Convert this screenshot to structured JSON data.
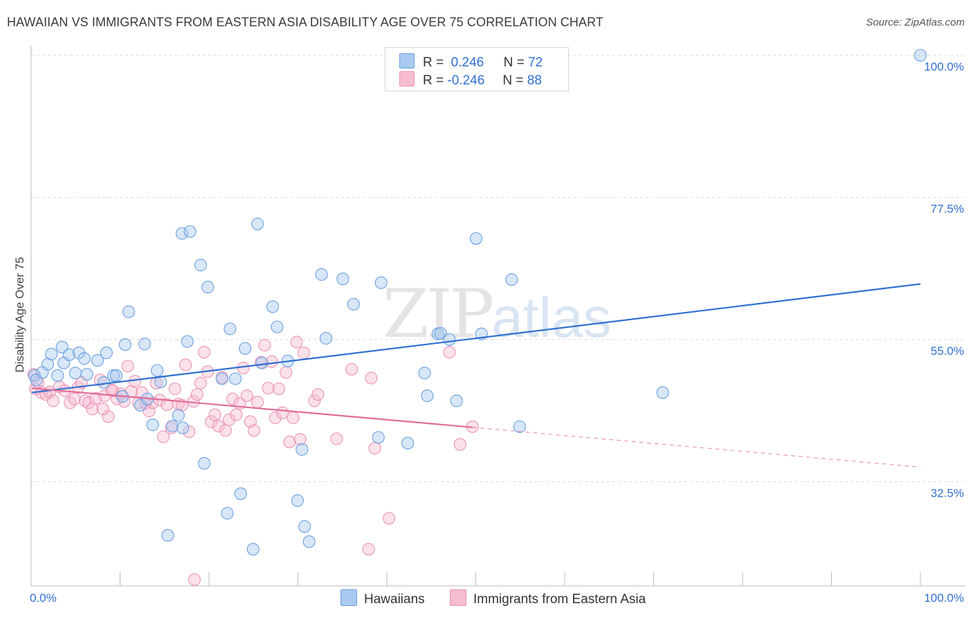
{
  "title": "HAWAIIAN VS IMMIGRANTS FROM EASTERN ASIA DISABILITY AGE OVER 75 CORRELATION CHART",
  "source": "Source: ZipAtlas.com",
  "watermark": {
    "zip": "ZIP",
    "atlas": "atlas"
  },
  "legend": {
    "r_label": "R =",
    "n_label": "N =",
    "series1": {
      "r": "0.246",
      "n": "72"
    },
    "series2": {
      "r": "-0.246",
      "n": "88"
    }
  },
  "colors": {
    "series1_fill": "#a9c9f0",
    "series1_stroke": "#6a9fe0",
    "series1_line": "#2f6fd1",
    "series2_fill": "#f6bcd0",
    "series2_stroke": "#ec93b4",
    "series2_line": "#e06d96",
    "tick_label": "#2f6fd1",
    "grid": "#d9d9d9"
  },
  "chart_data": {
    "type": "scatter",
    "title": "HAWAIIAN VS IMMIGRANTS FROM EASTERN ASIA DISABILITY AGE OVER 75 CORRELATION CHART",
    "xlabel": "",
    "ylabel": "Disability Age Over 75",
    "xlim": [
      0,
      100
    ],
    "ylim": [
      16,
      100
    ],
    "x_tick_labels": [
      "0.0%",
      "100.0%"
    ],
    "y_ticks": [
      32.5,
      55.0,
      77.5,
      100.0
    ],
    "y_tick_labels": [
      "32.5%",
      "55.0%",
      "77.5%",
      "100.0%"
    ],
    "grid": true,
    "legend_position": "bottom",
    "series": [
      {
        "name": "Hawaiians",
        "points": [
          [
            0.3,
            49.3
          ],
          [
            0.5,
            48.6
          ],
          [
            1.2,
            49.8
          ],
          [
            1.8,
            51.1
          ],
          [
            2.2,
            52.7
          ],
          [
            2.9,
            49.3
          ],
          [
            3.4,
            53.8
          ],
          [
            3.6,
            51.3
          ],
          [
            4.2,
            52.6
          ],
          [
            4.9,
            49.7
          ],
          [
            5.3,
            52.9
          ],
          [
            5.9,
            52.0
          ],
          [
            6.2,
            49.5
          ],
          [
            7.4,
            51.7
          ],
          [
            8.1,
            48.2
          ],
          [
            8.4,
            52.9
          ],
          [
            9.2,
            49.3
          ],
          [
            9.5,
            49.3
          ],
          [
            10.2,
            46.0
          ],
          [
            10.5,
            54.2
          ],
          [
            10.9,
            59.4
          ],
          [
            12.2,
            44.6
          ],
          [
            12.7,
            54.3
          ],
          [
            13.0,
            45.6
          ],
          [
            13.6,
            41.5
          ],
          [
            14.1,
            50.1
          ],
          [
            14.5,
            48.3
          ],
          [
            15.3,
            24.0
          ],
          [
            15.8,
            41.3
          ],
          [
            16.5,
            43.0
          ],
          [
            16.9,
            71.8
          ],
          [
            17.5,
            54.7
          ],
          [
            17.8,
            72.1
          ],
          [
            19.0,
            66.8
          ],
          [
            19.4,
            35.4
          ],
          [
            19.8,
            63.3
          ],
          [
            21.4,
            48.8
          ],
          [
            22.0,
            27.5
          ],
          [
            22.3,
            56.7
          ],
          [
            22.9,
            48.8
          ],
          [
            23.5,
            30.6
          ],
          [
            24.0,
            53.6
          ],
          [
            24.9,
            21.8
          ],
          [
            25.4,
            73.3
          ],
          [
            25.9,
            51.3
          ],
          [
            27.1,
            60.2
          ],
          [
            27.6,
            57.0
          ],
          [
            28.8,
            51.6
          ],
          [
            29.9,
            29.5
          ],
          [
            30.4,
            37.6
          ],
          [
            30.7,
            25.4
          ],
          [
            31.2,
            23.0
          ],
          [
            32.6,
            65.3
          ],
          [
            33.1,
            55.2
          ],
          [
            35.0,
            64.6
          ],
          [
            36.2,
            60.6
          ],
          [
            39.0,
            39.5
          ],
          [
            39.3,
            64.0
          ],
          [
            42.3,
            38.6
          ],
          [
            44.2,
            49.7
          ],
          [
            44.5,
            46.1
          ],
          [
            45.7,
            55.9
          ],
          [
            47.8,
            45.3
          ],
          [
            50.0,
            71.0
          ],
          [
            50.6,
            55.9
          ],
          [
            54.0,
            64.5
          ],
          [
            54.9,
            41.2
          ],
          [
            71.0,
            46.6
          ],
          [
            100.0,
            100.0
          ],
          [
            46.0,
            56.0
          ],
          [
            47.0,
            55.0
          ],
          [
            17.0,
            41.0
          ]
        ]
      },
      {
        "name": "Immigrants from Eastern Asia",
        "points": [
          [
            0.2,
            49.5
          ],
          [
            0.4,
            47.2
          ],
          [
            0.7,
            48.2
          ],
          [
            1.1,
            46.6
          ],
          [
            1.6,
            46.3
          ],
          [
            2.0,
            46.7
          ],
          [
            2.4,
            45.3
          ],
          [
            3.1,
            47.5
          ],
          [
            3.7,
            46.9
          ],
          [
            4.3,
            45.0
          ],
          [
            4.8,
            45.6
          ],
          [
            5.2,
            47.4
          ],
          [
            5.6,
            48.2
          ],
          [
            6.0,
            45.3
          ],
          [
            6.4,
            45.0
          ],
          [
            6.8,
            44.0
          ],
          [
            7.2,
            45.7
          ],
          [
            7.7,
            48.6
          ],
          [
            8.2,
            46.1
          ],
          [
            8.6,
            42.8
          ],
          [
            9.1,
            46.9
          ],
          [
            9.6,
            45.6
          ],
          [
            10.0,
            46.4
          ],
          [
            10.4,
            45.2
          ],
          [
            10.8,
            50.8
          ],
          [
            11.2,
            46.8
          ],
          [
            11.6,
            48.4
          ],
          [
            12.0,
            45.0
          ],
          [
            12.4,
            46.6
          ],
          [
            12.8,
            44.9
          ],
          [
            13.2,
            43.7
          ],
          [
            13.6,
            45.0
          ],
          [
            14.0,
            48.1
          ],
          [
            14.4,
            45.4
          ],
          [
            14.8,
            39.6
          ],
          [
            15.2,
            44.7
          ],
          [
            15.7,
            41.0
          ],
          [
            16.1,
            47.2
          ],
          [
            16.5,
            44.8
          ],
          [
            16.9,
            44.6
          ],
          [
            17.3,
            51.0
          ],
          [
            17.7,
            40.4
          ],
          [
            18.2,
            45.2
          ],
          [
            18.6,
            46.3
          ],
          [
            19.0,
            48.1
          ],
          [
            19.4,
            53.0
          ],
          [
            19.8,
            49.9
          ],
          [
            20.2,
            42.0
          ],
          [
            20.6,
            43.1
          ],
          [
            21.0,
            41.3
          ],
          [
            21.4,
            49.0
          ],
          [
            21.8,
            40.6
          ],
          [
            22.2,
            42.3
          ],
          [
            22.6,
            45.6
          ],
          [
            23.0,
            43.1
          ],
          [
            23.4,
            44.9
          ],
          [
            23.8,
            50.5
          ],
          [
            24.2,
            46.1
          ],
          [
            24.6,
            42.0
          ],
          [
            25.0,
            40.6
          ],
          [
            25.4,
            45.1
          ],
          [
            25.8,
            51.4
          ],
          [
            26.2,
            54.1
          ],
          [
            26.6,
            47.3
          ],
          [
            27.0,
            51.5
          ],
          [
            27.4,
            42.6
          ],
          [
            27.8,
            47.2
          ],
          [
            28.2,
            43.4
          ],
          [
            28.6,
            49.8
          ],
          [
            29.0,
            38.8
          ],
          [
            29.4,
            42.6
          ],
          [
            29.8,
            54.6
          ],
          [
            30.2,
            39.2
          ],
          [
            30.6,
            52.9
          ],
          [
            31.8,
            45.3
          ],
          [
            32.2,
            46.3
          ],
          [
            34.3,
            39.3
          ],
          [
            36.0,
            50.3
          ],
          [
            38.2,
            48.9
          ],
          [
            38.6,
            37.8
          ],
          [
            40.2,
            26.7
          ],
          [
            37.9,
            21.8
          ],
          [
            48.2,
            38.4
          ],
          [
            49.6,
            41.2
          ],
          [
            18.3,
            17.0
          ],
          [
            47.0,
            53.0
          ],
          [
            8.0,
            44.0
          ],
          [
            9.0,
            47.0
          ]
        ]
      }
    ],
    "trend_lines": [
      {
        "series": "Hawaiians",
        "x": [
          0,
          100
        ],
        "y": [
          46.6,
          63.8
        ]
      },
      {
        "series": "Immigrants from Eastern Asia",
        "x": [
          0,
          49.6
        ],
        "y": [
          47.3,
          41.1
        ],
        "dashed_extension_to": [
          100,
          34.8
        ]
      }
    ]
  }
}
